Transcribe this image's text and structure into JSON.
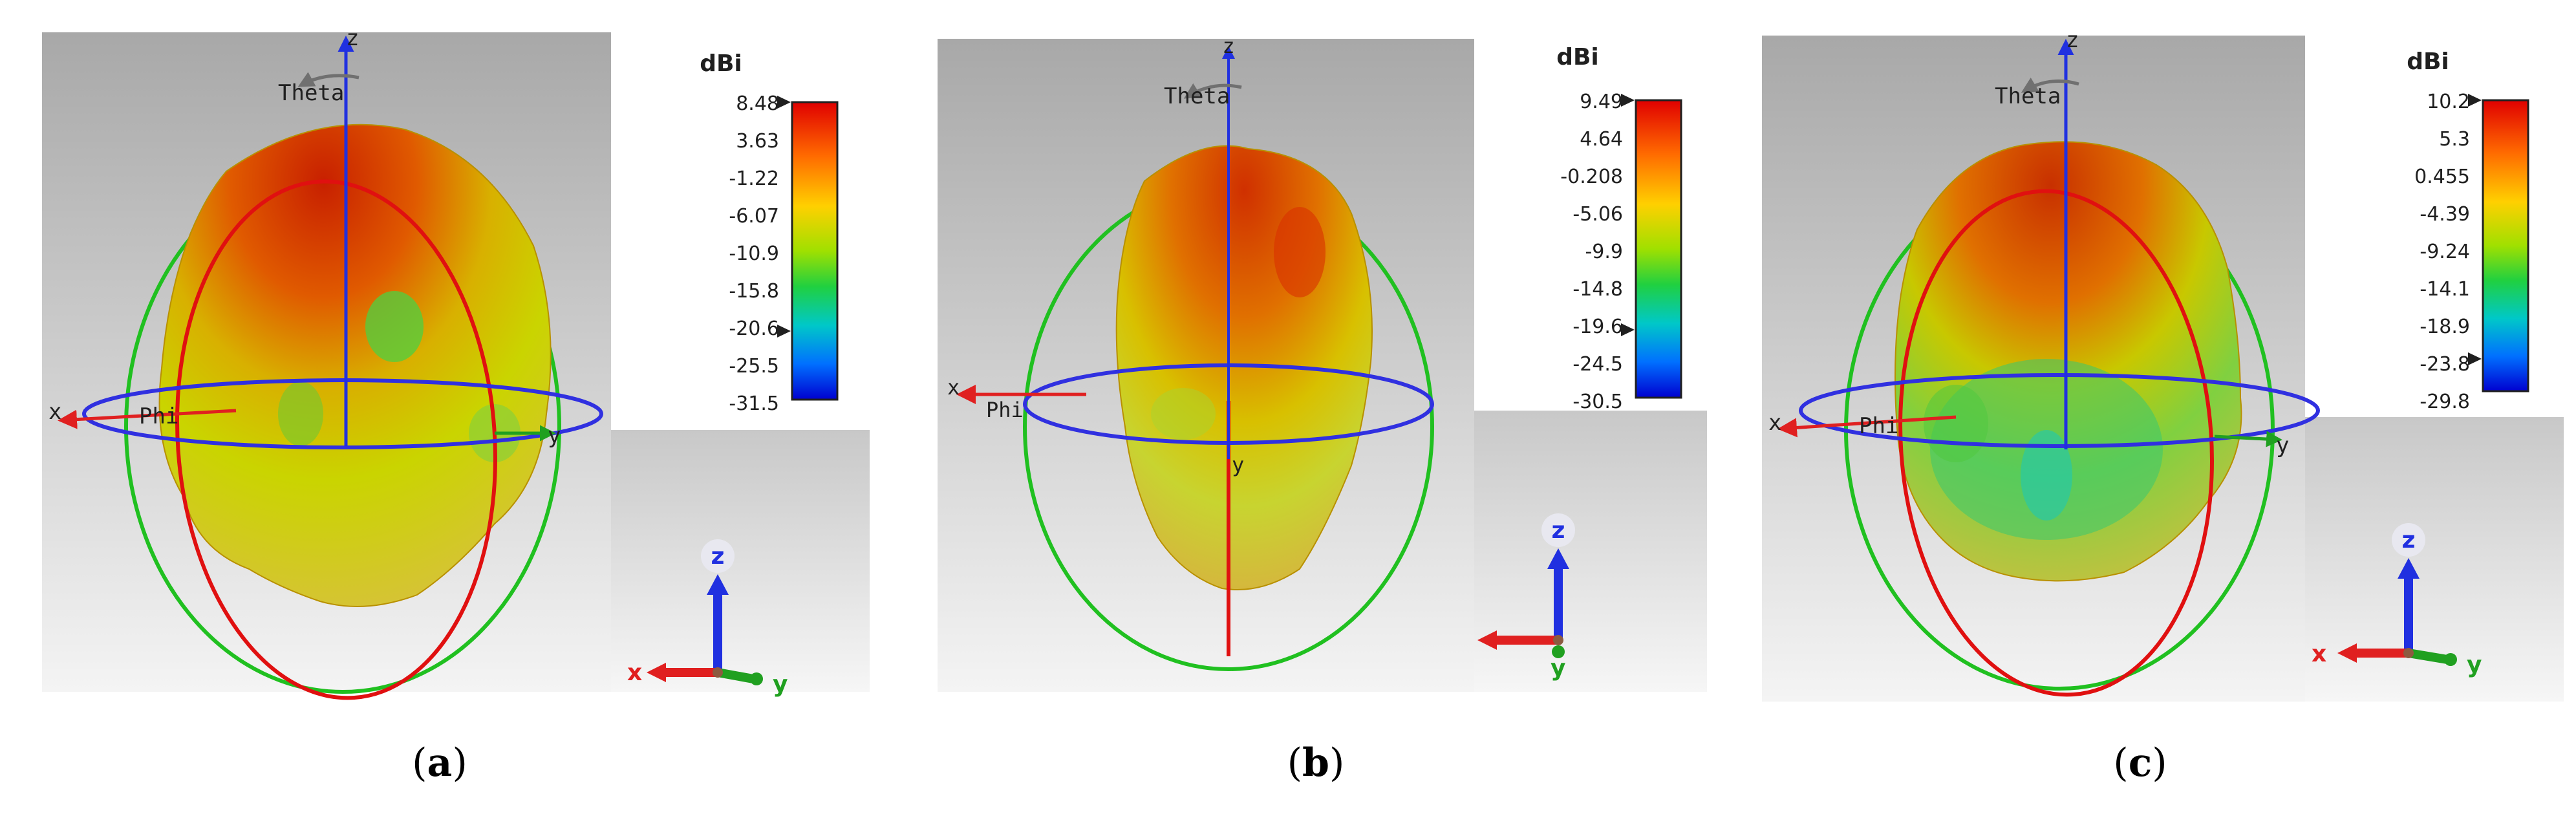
{
  "panels": [
    {
      "id": "a",
      "caption_letter": "a",
      "unit_label": "dBi",
      "scale_ticks": [
        "8.48",
        "3.63",
        "-1.22",
        "-6.07",
        "-10.9",
        "-15.8",
        "-20.6",
        "-25.5",
        "-31.5"
      ],
      "axis_labels": {
        "z": "z",
        "x": "x",
        "y": "y",
        "theta": "Theta",
        "phi": "Phi"
      },
      "triad": {
        "z": "z",
        "x": "x",
        "y": "y"
      }
    },
    {
      "id": "b",
      "caption_letter": "b",
      "unit_label": "dBi",
      "scale_ticks": [
        "9.49",
        "4.64",
        "-0.208",
        "-5.06",
        "-9.9",
        "-14.8",
        "-19.6",
        "-24.5",
        "-30.5"
      ],
      "axis_labels": {
        "z": "z",
        "x": "x",
        "y": "y",
        "theta": "Theta",
        "phi": "Phi"
      },
      "triad": {
        "z": "z",
        "x": "",
        "y": "y"
      }
    },
    {
      "id": "c",
      "caption_letter": "c",
      "unit_label": "dBi",
      "scale_ticks": [
        "10.2",
        "5.3",
        "0.455",
        "-4.39",
        "-9.24",
        "-14.1",
        "-18.9",
        "-23.8",
        "-29.8"
      ],
      "axis_labels": {
        "z": "z",
        "x": "x",
        "y": "y",
        "theta": "Theta",
        "phi": "Phi"
      },
      "triad": {
        "z": "z",
        "x": "x",
        "y": "y"
      }
    }
  ],
  "colors": {
    "gain_max": "#e00000",
    "gain_mid": "#c8e000",
    "gain_min": "#0000e0",
    "theta_circle": "#e01010",
    "phi_circle": "#3030e0",
    "outer_circle": "#20c020"
  }
}
